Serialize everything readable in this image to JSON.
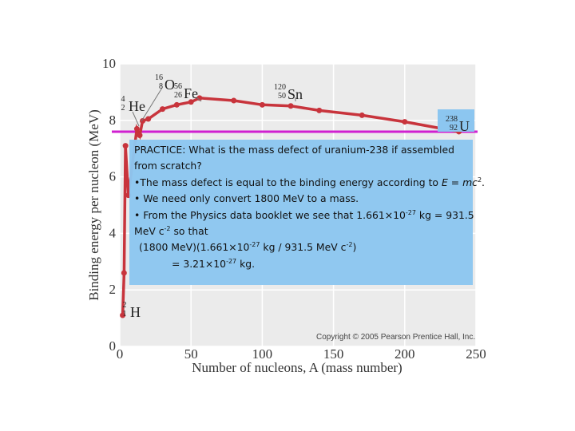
{
  "chart_data": {
    "type": "line",
    "xlabel": "Number of nucleons, A (mass number)",
    "ylabel": "Binding energy per nucleon (MeV)",
    "xlim": [
      0,
      250
    ],
    "ylim": [
      0,
      10
    ],
    "x_ticks": [
      "0",
      "50",
      "100",
      "150",
      "200",
      "250"
    ],
    "y_ticks": [
      "0",
      "2",
      "4",
      "6",
      "8",
      "10"
    ],
    "grid": true,
    "line_color": "#c8343c",
    "reference_line": {
      "y": 7.6,
      "color": "#d020d0"
    },
    "series": [
      {
        "x": [
          2,
          3,
          4,
          6,
          12,
          14,
          16,
          20,
          30,
          40,
          50,
          56,
          80,
          100,
          120,
          140,
          170,
          200,
          238
        ],
        "y": [
          1.1,
          2.6,
          7.1,
          5.35,
          7.7,
          7.47,
          7.98,
          8.05,
          8.4,
          8.55,
          8.65,
          8.79,
          8.7,
          8.55,
          8.51,
          8.35,
          8.18,
          7.95,
          7.6
        ]
      }
    ],
    "annotations": [
      {
        "label": "He",
        "mass": "4",
        "atomic": "2",
        "x": 4,
        "y": 7.1
      },
      {
        "label": "O",
        "mass": "16",
        "atomic": "8",
        "x": 16,
        "y": 7.98
      },
      {
        "label": "Fe",
        "mass": "56",
        "atomic": "26",
        "x": 56,
        "y": 8.79
      },
      {
        "label": "Sn",
        "mass": "120",
        "atomic": "50",
        "x": 120,
        "y": 8.51
      },
      {
        "label": "U",
        "mass": "238",
        "atomic": "92",
        "x": 238,
        "y": 7.6
      },
      {
        "label": "H",
        "mass": "2",
        "atomic": "1",
        "x": 2,
        "y": 1.1
      }
    ],
    "copyright": "Copyright © 2005 Pearson Prentice Hall, Inc."
  },
  "practice": {
    "question": "PRACTICE: What is the mass defect of uranium-238 if assembled",
    "question_cont": "from scratch?",
    "bullet1_pre": "•The mass defect is equal to the binding energy according to ",
    "bullet1_E": "E",
    "bullet1_eq": " = ",
    "bullet1_mc": "mc",
    "bullet1_exp": "2",
    "bullet1_end": ".",
    "bullet2": "• We need only convert 1800 MeV to a mass.",
    "bullet3_pre": "• From the Physics data booklet we see that 1.661×10",
    "bullet3_exp": "-27",
    "bullet3_post": " kg = 931.5",
    "line4_pre": "MeV c",
    "line4_exp": "-2",
    "line4_post": " so that",
    "line5_pre": "(1800 MeV)(1.661×10",
    "line5_exp1": "-27",
    "line5_mid": " kg / 931.5 MeV c",
    "line5_exp2": "-2",
    "line5_post": ")",
    "line6_pre": "= 3.21×10",
    "line6_exp": "-27",
    "line6_post": " kg."
  }
}
